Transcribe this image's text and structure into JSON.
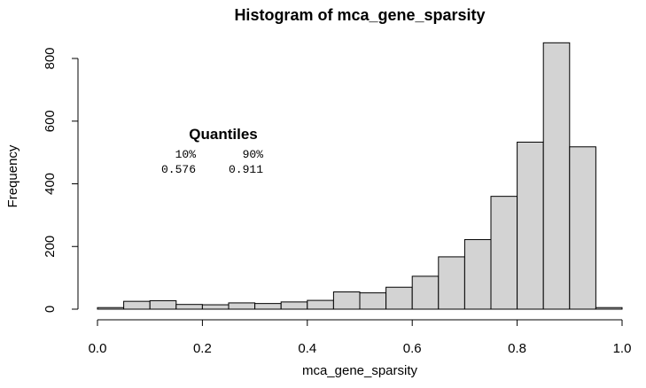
{
  "chart_data": {
    "type": "bar",
    "title": "Histogram of mca_gene_sparsity",
    "xlabel": "mca_gene_sparsity",
    "ylabel": "Frequency",
    "xlim": [
      0.0,
      1.0
    ],
    "ylim": [
      0,
      850
    ],
    "x_ticks": [
      "0.0",
      "0.2",
      "0.4",
      "0.6",
      "0.8",
      "1.0"
    ],
    "y_ticks": [
      "0",
      "200",
      "400",
      "600",
      "800"
    ],
    "bin_width": 0.05,
    "bin_edges": [
      0.0,
      0.05,
      0.1,
      0.15,
      0.2,
      0.25,
      0.3,
      0.35,
      0.4,
      0.45,
      0.5,
      0.55,
      0.6,
      0.65,
      0.7,
      0.75,
      0.8,
      0.85,
      0.9,
      0.95,
      1.0
    ],
    "values": [
      5,
      25,
      27,
      15,
      14,
      20,
      18,
      23,
      28,
      55,
      52,
      70,
      105,
      167,
      222,
      360,
      533,
      850,
      518,
      5
    ],
    "grid": false,
    "annotation": {
      "title": "Quantiles",
      "headers": [
        "10%",
        "90%"
      ],
      "values": [
        "0.576",
        "0.911"
      ]
    }
  }
}
